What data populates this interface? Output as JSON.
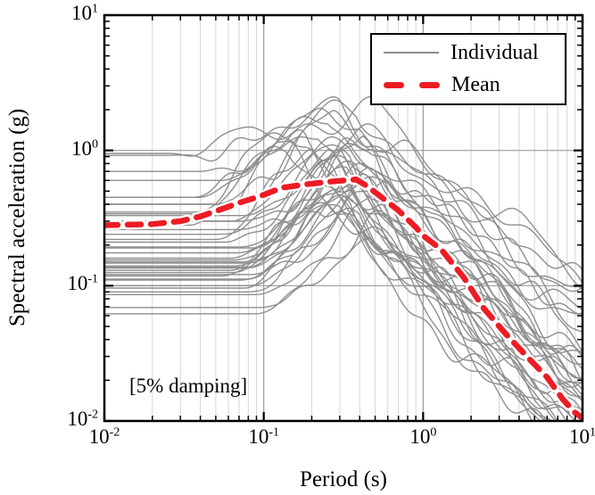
{
  "chart_data": {
    "type": "line",
    "title": "",
    "xlabel": "Period (s)",
    "ylabel": "Spectral acceleration (g)",
    "annotation": "[5% damping]",
    "x_scale": "log",
    "y_scale": "log",
    "xlim": [
      0.01,
      10
    ],
    "ylim": [
      0.01,
      10
    ],
    "grid": {
      "vertical_minor": true,
      "vertical_major": true,
      "horizontal_major": true,
      "horizontal_minor": false
    },
    "x_ticks": [
      {
        "base": "10",
        "exp": "-2",
        "log": -2
      },
      {
        "base": "10",
        "exp": "-1",
        "log": -1
      },
      {
        "base": "10",
        "exp": "0",
        "log": 0
      },
      {
        "base": "10",
        "exp": "1",
        "log": 1
      }
    ],
    "y_ticks": [
      {
        "base": "10",
        "exp": "1",
        "log": 1
      },
      {
        "base": "10",
        "exp": "0",
        "log": 0
      },
      {
        "base": "10",
        "exp": "-1",
        "log": -1
      },
      {
        "base": "10",
        "exp": "-2",
        "log": -2
      }
    ],
    "colors": {
      "individual": "#8f8f8f",
      "mean": "#ed1c24",
      "mean_halo": "#ffffff",
      "grid_minor": "#d6d6d6",
      "grid_major": "#9b9b9b",
      "frame": "#000000",
      "background": "#ffffff"
    },
    "legend": {
      "position": "top-right",
      "entries": [
        {
          "label": "Individual",
          "style": "solid",
          "color": "#8f8f8f"
        },
        {
          "label": "Mean",
          "style": "dashed",
          "color": "#ed1c24"
        }
      ]
    },
    "mean_series": {
      "name": "Mean",
      "period_s": [
        0.01,
        0.02,
        0.03,
        0.04,
        0.055,
        0.07,
        0.085,
        0.1,
        0.13,
        0.18,
        0.25,
        0.32,
        0.38,
        0.45,
        0.55,
        0.7,
        0.9,
        1.0,
        1.3,
        1.8,
        2.4,
        3.3,
        4.6,
        6.0,
        7.5,
        9.0,
        10.0
      ],
      "sa_g": [
        0.28,
        0.285,
        0.3,
        0.325,
        0.37,
        0.41,
        0.44,
        0.47,
        0.53,
        0.56,
        0.585,
        0.6,
        0.61,
        0.54,
        0.45,
        0.36,
        0.27,
        0.235,
        0.185,
        0.115,
        0.068,
        0.044,
        0.029,
        0.021,
        0.0145,
        0.0115,
        0.0105
      ]
    },
    "individual_series": {
      "name": "Individual",
      "count": 40,
      "curve_fields": [
        "pga_g",
        "peak_sa_g",
        "peak_period_s",
        "sa_at_10s_g",
        "rise_decades",
        "seed"
      ],
      "curves": [
        [
          0.95,
          1.9,
          0.5,
          0.12,
          1.3,
          11
        ],
        [
          0.92,
          1.75,
          0.4,
          0.1,
          1.2,
          22
        ],
        [
          0.7,
          1.55,
          0.25,
          0.055,
          0.8,
          3
        ],
        [
          0.6,
          2.3,
          0.3,
          0.05,
          0.75,
          4
        ],
        [
          0.45,
          1.4,
          0.18,
          0.03,
          0.7,
          5
        ],
        [
          0.4,
          2.15,
          0.38,
          0.08,
          0.8,
          6
        ],
        [
          0.34,
          1.2,
          0.22,
          0.025,
          0.7,
          7
        ],
        [
          0.3,
          1.0,
          0.45,
          0.04,
          0.8,
          8
        ],
        [
          0.24,
          0.9,
          0.3,
          0.02,
          0.75,
          9
        ],
        [
          0.193,
          0.75,
          0.35,
          0.015,
          0.7,
          10
        ],
        [
          0.16,
          0.65,
          0.28,
          0.012,
          0.65,
          1
        ],
        [
          0.147,
          0.8,
          0.5,
          0.03,
          0.8,
          12
        ],
        [
          0.137,
          0.6,
          0.4,
          0.01,
          0.7,
          13
        ],
        [
          0.13,
          0.5,
          0.25,
          0.008,
          0.6,
          14
        ],
        [
          0.121,
          0.55,
          0.6,
          0.02,
          0.85,
          15
        ],
        [
          0.112,
          0.45,
          0.35,
          0.007,
          0.65,
          16
        ],
        [
          0.096,
          0.4,
          0.3,
          0.006,
          0.6,
          17
        ],
        [
          0.086,
          0.35,
          0.5,
          0.01,
          0.75,
          18
        ],
        [
          0.069,
          0.3,
          0.6,
          0.009,
          0.8,
          19
        ],
        [
          0.062,
          0.25,
          0.45,
          0.005,
          0.7,
          20
        ],
        [
          0.35,
          1.5,
          0.15,
          0.02,
          0.6,
          21
        ],
        [
          0.28,
          1.1,
          0.12,
          0.015,
          0.55,
          2
        ],
        [
          0.22,
          0.85,
          0.2,
          0.01,
          0.6,
          23
        ],
        [
          0.19,
          0.7,
          0.55,
          0.025,
          0.85,
          24
        ],
        [
          0.155,
          0.6,
          0.33,
          0.012,
          0.7,
          25
        ],
        [
          0.14,
          0.95,
          0.42,
          0.018,
          0.8,
          26
        ],
        [
          0.125,
          0.5,
          0.28,
          0.006,
          0.65,
          27
        ],
        [
          0.118,
          0.42,
          0.22,
          0.005,
          0.6,
          28
        ],
        [
          0.3,
          1.3,
          0.35,
          0.05,
          0.75,
          29
        ],
        [
          0.26,
          1.0,
          0.5,
          0.06,
          0.85,
          30
        ],
        [
          0.21,
          0.8,
          0.26,
          0.009,
          0.65,
          31
        ],
        [
          0.175,
          0.66,
          0.38,
          0.014,
          0.75,
          32
        ],
        [
          0.15,
          0.58,
          0.45,
          0.02,
          0.8,
          33
        ],
        [
          0.135,
          0.72,
          0.6,
          0.03,
          0.9,
          34
        ],
        [
          0.11,
          0.4,
          0.32,
          0.004,
          0.65,
          35
        ],
        [
          0.1,
          0.5,
          0.55,
          0.015,
          0.85,
          36
        ],
        [
          0.09,
          0.33,
          0.4,
          0.006,
          0.7,
          37
        ],
        [
          0.4,
          1.7,
          0.28,
          0.09,
          0.75,
          38
        ],
        [
          0.33,
          1.25,
          0.6,
          0.12,
          0.95,
          39
        ],
        [
          0.45,
          1.1,
          0.14,
          0.02,
          0.55,
          40
        ]
      ]
    }
  }
}
